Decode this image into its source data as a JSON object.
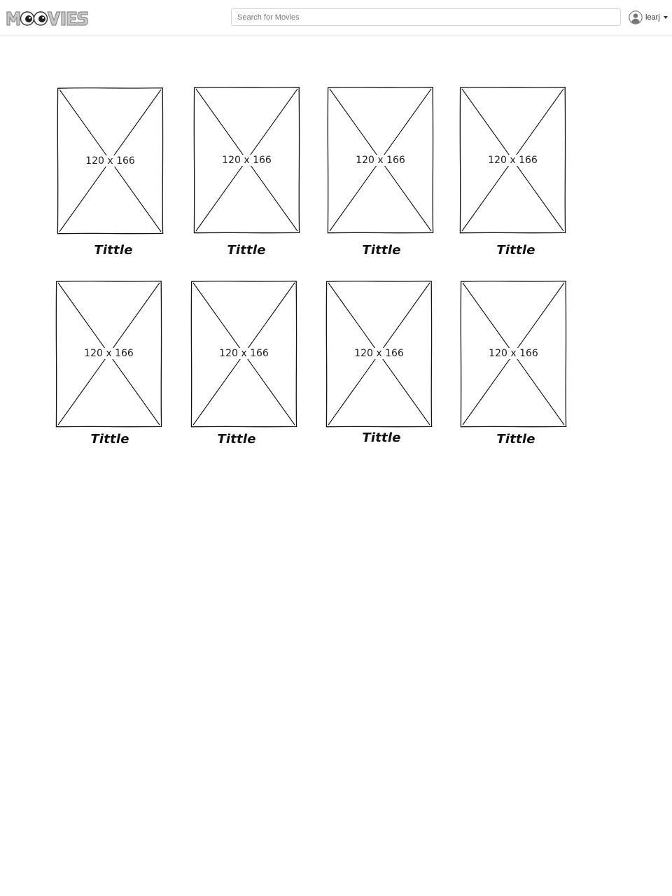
{
  "header": {
    "logo_text": "MOOVIES",
    "search": {
      "placeholder": "Search for Movies",
      "value": ""
    },
    "user": {
      "name": "learj"
    }
  },
  "icons": {
    "logo": "moovies-logo",
    "avatar": "user-avatar-icon",
    "caret": "caret-down-icon"
  },
  "colors": {
    "logo_fill": "#c8c8c8",
    "logo_stroke": "#8a8a8a",
    "border": "#d9d9d9",
    "text": "#222222"
  },
  "movies": [
    {
      "placeholder": "120 x 166",
      "title": "Tittle"
    },
    {
      "placeholder": "120 x 166",
      "title": "Tittle"
    },
    {
      "placeholder": "120 x 166",
      "title": "Tittle"
    },
    {
      "placeholder": "120 x 166",
      "title": "Tittle"
    },
    {
      "placeholder": "120 x 166",
      "title": "Tittle"
    },
    {
      "placeholder": "120 x 166",
      "title": "Tittle"
    },
    {
      "placeholder": "120 x 166",
      "title": "Tittle"
    },
    {
      "placeholder": "120 x 166",
      "title": "Tittle"
    }
  ]
}
